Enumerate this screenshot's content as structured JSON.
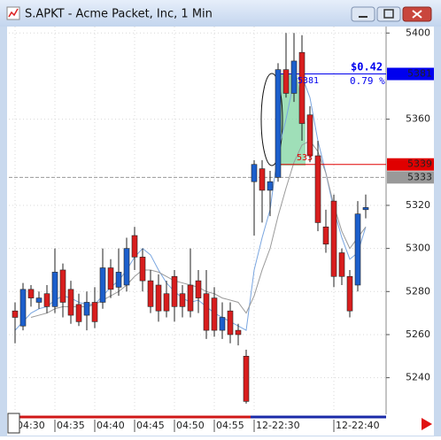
{
  "window": {
    "title": "S.APKT - Acme Packet, Inc, 1 Min"
  },
  "chart_data": {
    "type": "candlestick",
    "categories": [
      "04:30",
      null,
      null,
      null,
      null,
      "04:35",
      null,
      null,
      null,
      null,
      "04:40",
      null,
      null,
      null,
      null,
      "04:45",
      null,
      null,
      null,
      null,
      "04:50",
      null,
      null,
      null,
      null,
      "04:55",
      null,
      null,
      null,
      null,
      "12-22:30",
      null,
      null,
      null,
      null,
      null,
      null,
      null,
      null,
      null,
      "12-22:40",
      null,
      null,
      null,
      null
    ],
    "open": [
      5271,
      5264,
      5281,
      5275,
      5279,
      5273,
      5290,
      5281,
      5274,
      5269,
      5275,
      5275,
      5291,
      5282,
      5283,
      5306,
      5296,
      5285,
      5283,
      5279,
      5287,
      5279,
      5283,
      5285,
      5279,
      5277,
      5262,
      5271,
      5262,
      5250,
      5331,
      5337,
      5327,
      5333,
      5383,
      5372,
      5391,
      5362,
      5343,
      5310,
      5322,
      5298,
      5287,
      5283,
      5318
    ],
    "high": [
      5275,
      5284,
      5283,
      5280,
      5283,
      5300,
      5293,
      5285,
      5279,
      5280,
      5282,
      5300,
      5295,
      5300,
      5305,
      5310,
      5300,
      5290,
      5288,
      5285,
      5290,
      5283,
      5300,
      5290,
      5290,
      5282,
      5275,
      5275,
      5265,
      5253,
      5341,
      5341,
      5336,
      5386,
      5400,
      5400,
      5399,
      5366,
      5350,
      5318,
      5325,
      5300,
      5290,
      5322,
      5325
    ],
    "low": [
      5256,
      5262,
      5273,
      5272,
      5270,
      5270,
      5268,
      5265,
      5264,
      5262,
      5263,
      5272,
      5277,
      5278,
      5280,
      5290,
      5280,
      5270,
      5266,
      5268,
      5266,
      5268,
      5268,
      5270,
      5258,
      5259,
      5258,
      5256,
      5255,
      5228,
      5306,
      5312,
      5315,
      5331,
      5370,
      5368,
      5350,
      5340,
      5308,
      5298,
      5282,
      5283,
      5268,
      5280,
      5314
    ],
    "close": [
      5268,
      5281,
      5277,
      5277,
      5273,
      5289,
      5275,
      5269,
      5266,
      5275,
      5266,
      5291,
      5281,
      5289,
      5300,
      5296,
      5285,
      5273,
      5271,
      5271,
      5273,
      5273,
      5271,
      5277,
      5262,
      5262,
      5268,
      5260,
      5260,
      5229,
      5339,
      5327,
      5331,
      5383,
      5372,
      5387,
      5358,
      5343,
      5312,
      5302,
      5287,
      5287,
      5271,
      5316,
      5319
    ],
    "up_color": "#1c5fcc",
    "down_color": "#d81e1e",
    "lines": [
      {
        "color": "#7aa6e0",
        "values": [
          5262,
          5266,
          5270,
          5272,
          5273,
          5276,
          5278,
          5277,
          5275,
          5274,
          5274,
          5278,
          5282,
          5285,
          5290,
          5296,
          5300,
          5297,
          5290,
          5284,
          5280,
          5277,
          5275,
          5276,
          5273,
          5270,
          5268,
          5266,
          5264,
          5262,
          5290,
          5305,
          5318,
          5345,
          5360,
          5378,
          5380,
          5370,
          5350,
          5335,
          5318,
          5305,
          5295,
          5298,
          5310
        ]
      },
      {
        "color": "#9a9a9a",
        "values": [
          null,
          null,
          5268,
          5269,
          5270,
          5272,
          5273,
          5273,
          5273,
          5273,
          5274,
          5276,
          5278,
          5280,
          5283,
          5287,
          5290,
          5290,
          5289,
          5287,
          5285,
          5284,
          5283,
          5282,
          5280,
          5279,
          5277,
          5276,
          5275,
          5270,
          5278,
          5290,
          5300,
          5315,
          5328,
          5340,
          5348,
          5350,
          5345,
          5335,
          5320,
          5308,
          5300,
          5305,
          5310
        ]
      }
    ],
    "ylim": [
      5223,
      5403
    ],
    "yticks": [
      5240,
      5260,
      5280,
      5300,
      5320,
      5360,
      5400
    ],
    "grid": true,
    "levels": [
      {
        "value": 5381,
        "color": "#0000ee"
      },
      {
        "value": 5339,
        "color": "#e00000"
      },
      {
        "value": 5333,
        "color": "#999999"
      }
    ],
    "annotations": [
      "$0.42",
      "0.79 %",
      "533"
    ]
  }
}
